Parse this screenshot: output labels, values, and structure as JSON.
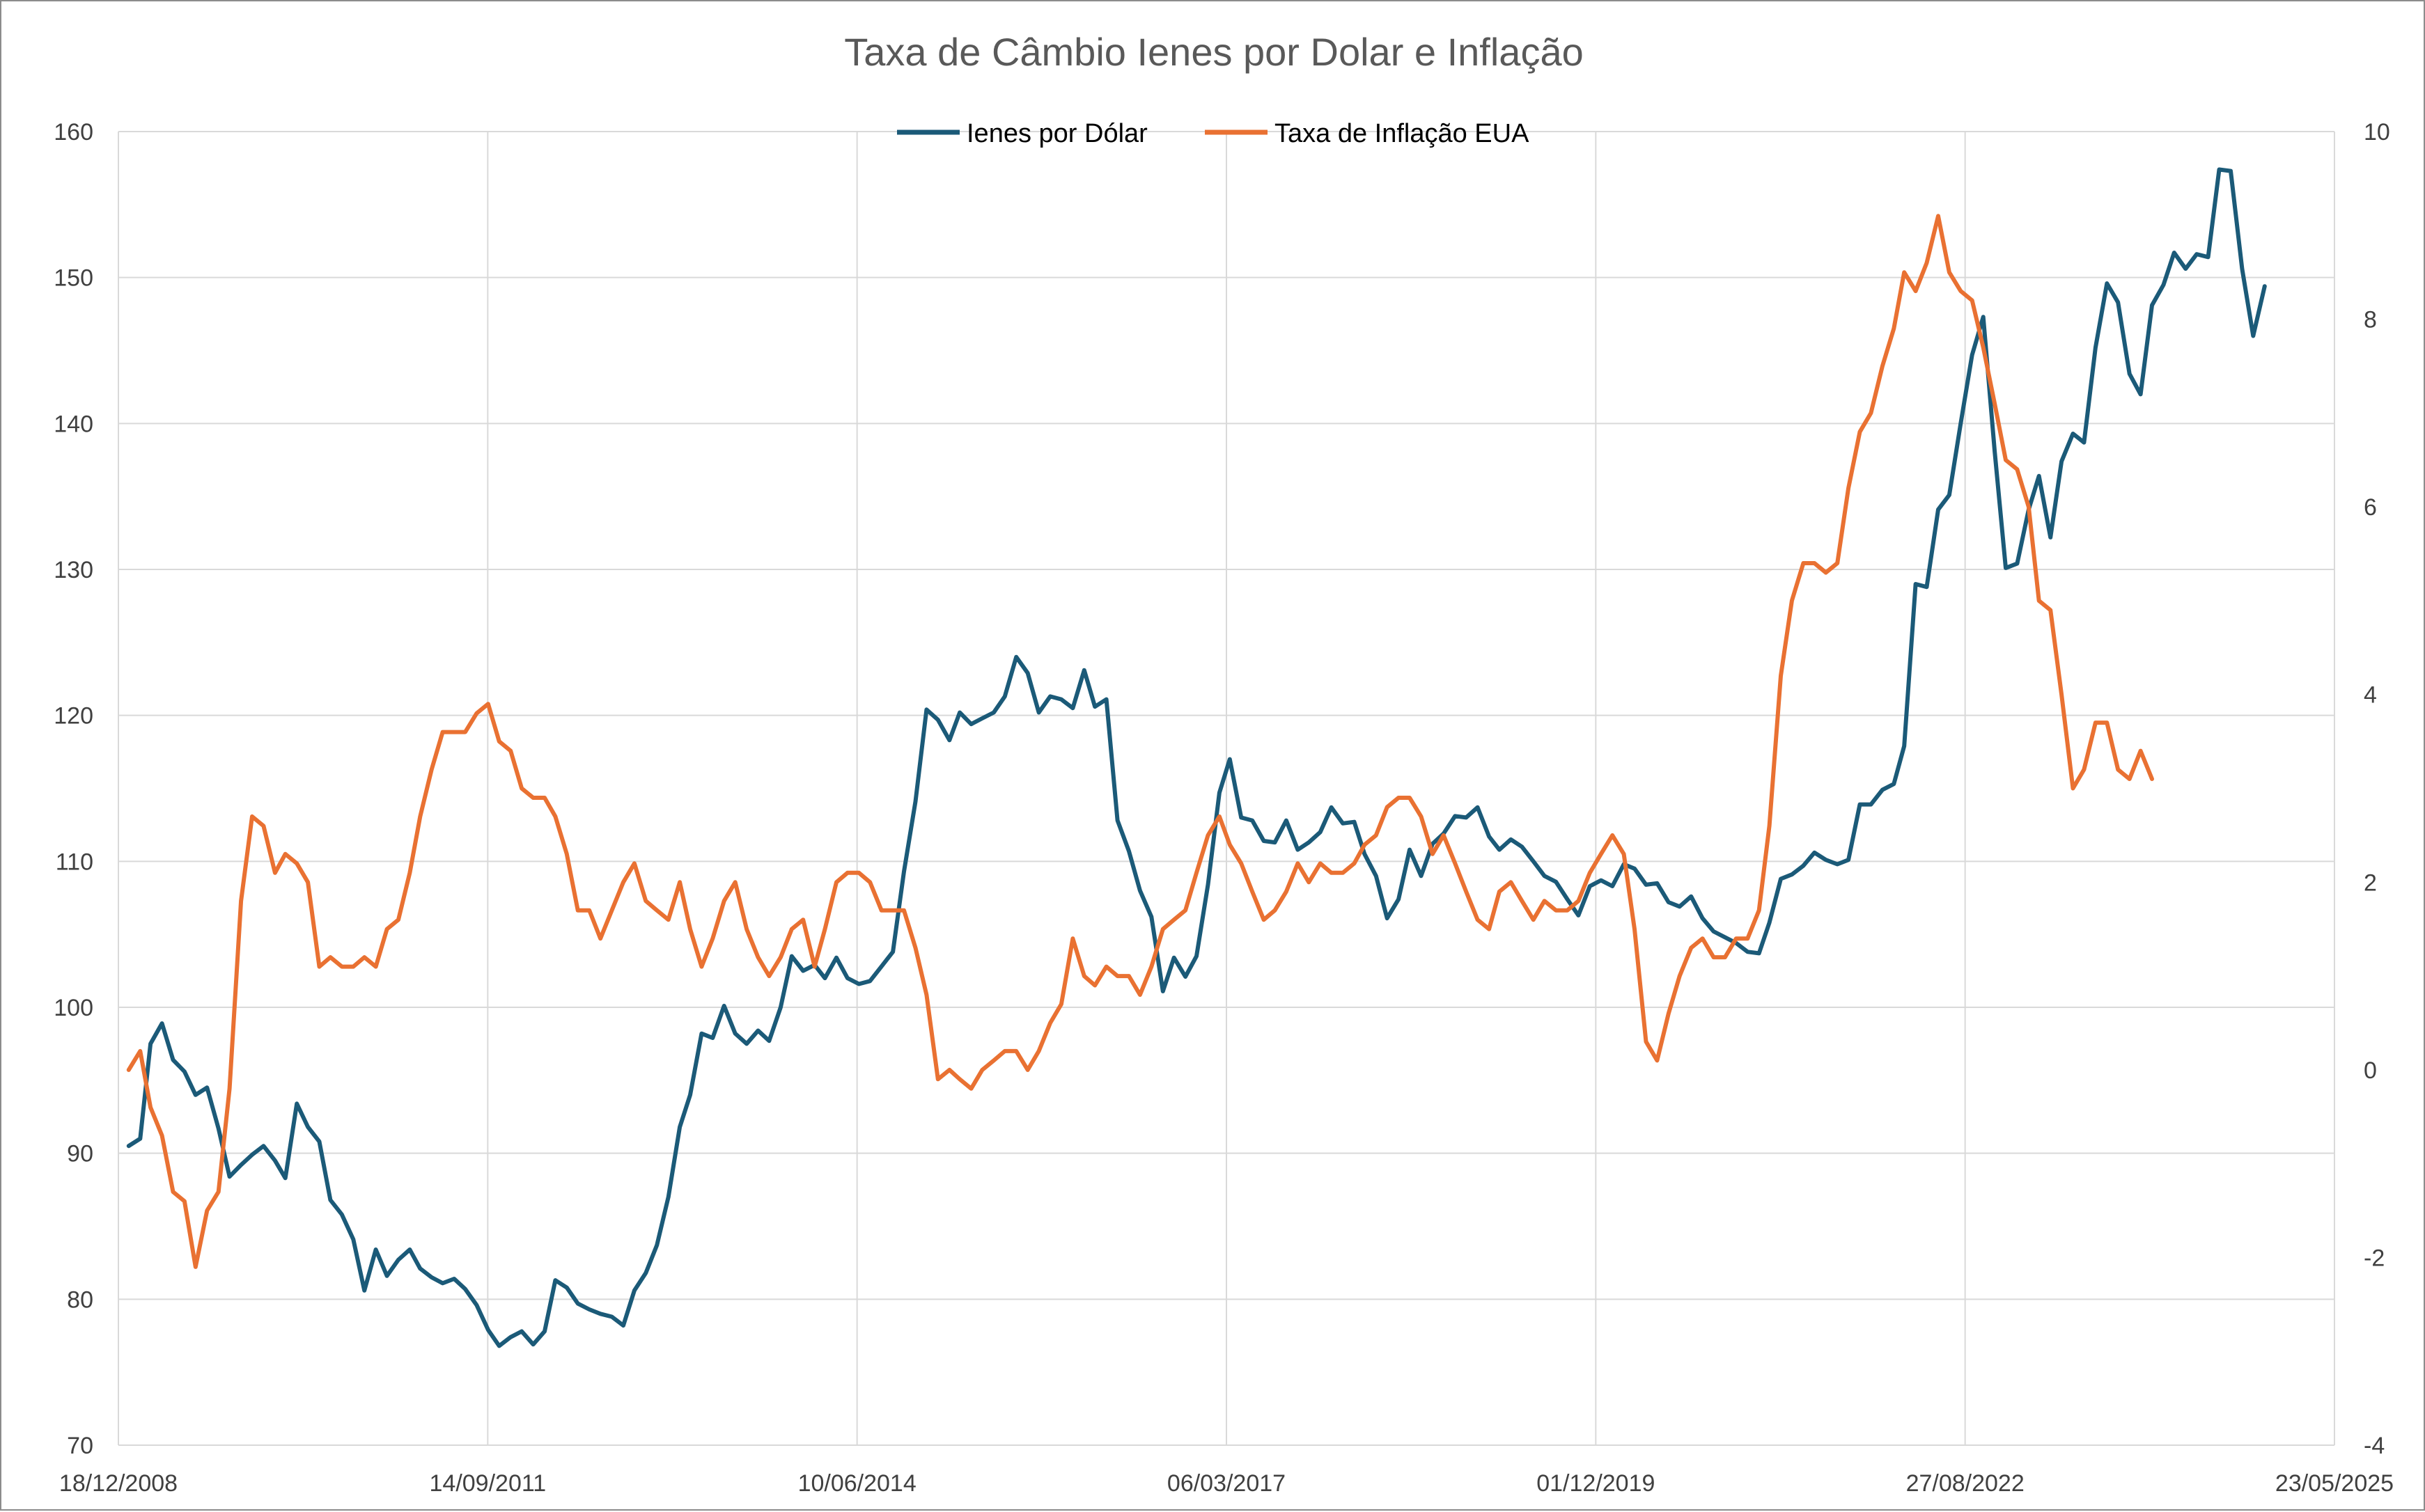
{
  "chart_data": {
    "type": "line",
    "title": "Taxa de Câmbio Ienes por Dolar e Inflação",
    "xlabel": "",
    "ylabel": "",
    "x_tick_labels": [
      "18/12/2008",
      "14/09/2011",
      "10/06/2014",
      "06/03/2017",
      "01/12/2019",
      "27/08/2022",
      "23/05/2025"
    ],
    "y_tick_labels": [
      "70",
      "80",
      "90",
      "100",
      "110",
      "120",
      "130",
      "140",
      "150",
      "160"
    ],
    "y2_tick_labels": [
      "-4",
      "-2",
      "0",
      "2",
      "4",
      "6",
      "8",
      "10"
    ],
    "xlim": [
      "2008-12-18",
      "2025-05-23"
    ],
    "ylim": [
      70,
      160
    ],
    "y2lim": [
      -4,
      10
    ],
    "grid": true,
    "legend_position": "top-center",
    "series": [
      {
        "name": "Ienes por Dólar",
        "axis": "left",
        "color": "#1b5a78",
        "start_date": "2009-01-31",
        "values": [
          90.5,
          91.0,
          97.5,
          98.9,
          96.4,
          95.6,
          94.0,
          94.5,
          91.7,
          88.4,
          89.2,
          89.9,
          90.5,
          89.5,
          88.3,
          93.4,
          91.8,
          90.8,
          86.8,
          85.8,
          84.1,
          80.6,
          83.4,
          81.6,
          82.7,
          83.4,
          82.1,
          81.5,
          81.1,
          81.4,
          80.7,
          79.6,
          77.9,
          76.8,
          77.4,
          77.8,
          76.9,
          77.8,
          81.3,
          80.8,
          79.7,
          79.3,
          79.0,
          78.8,
          78.2,
          80.6,
          81.8,
          83.7,
          87.0,
          91.8,
          94.0,
          98.2,
          97.9,
          100.1,
          98.2,
          97.5,
          98.4,
          97.7,
          100.0,
          103.5,
          102.5,
          102.9,
          102.0,
          103.4,
          102.0,
          101.6,
          101.8,
          102.8,
          103.8,
          109.3,
          114.1,
          120.4,
          119.7,
          118.3,
          120.2,
          119.4,
          119.8,
          120.2,
          121.3,
          124.0,
          122.9,
          120.2,
          121.3,
          121.1,
          120.5,
          123.1,
          120.6,
          121.1,
          112.8,
          110.7,
          108.0,
          106.2,
          101.1,
          103.4,
          102.1,
          103.5,
          108.4,
          114.7,
          117.0,
          113.0,
          112.8,
          111.4,
          111.3,
          112.8,
          110.8,
          111.3,
          112.0,
          113.7,
          112.6,
          112.7,
          110.5,
          109.0,
          106.1,
          107.4,
          110.8,
          109.0,
          111.2,
          111.9,
          113.1,
          113.0,
          113.7,
          111.7,
          110.8,
          111.5,
          111.0,
          110.0,
          109.0,
          108.6,
          107.4,
          106.3,
          108.3,
          108.7,
          108.3,
          109.8,
          109.5,
          108.4,
          108.5,
          107.2,
          106.9,
          107.6,
          106.1,
          105.2,
          104.8,
          104.4,
          103.8,
          103.7,
          105.8,
          108.8,
          109.1,
          109.7,
          110.6,
          110.1,
          109.8,
          110.1,
          113.9,
          113.9,
          114.9,
          115.3,
          117.9,
          129.0,
          128.8,
          134.1,
          135.1,
          140.0,
          144.7,
          147.3,
          138.1,
          130.1,
          130.4,
          134.1,
          136.4,
          132.2,
          137.4,
          139.3,
          138.7,
          145.2,
          149.6,
          148.3,
          143.4,
          142.0,
          148.1,
          149.5,
          151.7,
          150.6,
          151.6,
          151.4,
          157.4,
          157.3,
          150.6,
          146.0,
          149.4
        ]
      },
      {
        "name": "Taxa de Inflação EUA",
        "axis": "right",
        "color": "#e97132",
        "start_date": "2009-01-31",
        "values": [
          0.0,
          0.2,
          -0.4,
          -0.7,
          -1.3,
          -1.4,
          -2.1,
          -1.5,
          -1.3,
          -0.2,
          1.8,
          2.7,
          2.6,
          2.1,
          2.3,
          2.2,
          2.0,
          1.1,
          1.2,
          1.1,
          1.1,
          1.2,
          1.1,
          1.5,
          1.6,
          2.1,
          2.7,
          3.2,
          3.6,
          3.6,
          3.6,
          3.8,
          3.9,
          3.5,
          3.4,
          3.0,
          2.9,
          2.9,
          2.7,
          2.3,
          1.7,
          1.7,
          1.4,
          1.7,
          2.0,
          2.2,
          1.8,
          1.7,
          1.6,
          2.0,
          1.5,
          1.1,
          1.4,
          1.8,
          2.0,
          1.5,
          1.2,
          1.0,
          1.2,
          1.5,
          1.6,
          1.1,
          1.5,
          2.0,
          2.1,
          2.1,
          2.0,
          1.7,
          1.7,
          1.7,
          1.3,
          0.8,
          -0.1,
          0.0,
          -0.1,
          -0.2,
          0.0,
          0.1,
          0.2,
          0.2,
          0.0,
          0.2,
          0.5,
          0.7,
          1.4,
          1.0,
          0.9,
          1.1,
          1.0,
          1.0,
          0.8,
          1.1,
          1.5,
          1.6,
          1.7,
          2.1,
          2.5,
          2.7,
          2.4,
          2.2,
          1.9,
          1.6,
          1.7,
          1.9,
          2.2,
          2.0,
          2.2,
          2.1,
          2.1,
          2.2,
          2.4,
          2.5,
          2.8,
          2.9,
          2.9,
          2.7,
          2.3,
          2.5,
          2.2,
          1.9,
          1.6,
          1.5,
          1.9,
          2.0,
          1.8,
          1.6,
          1.8,
          1.7,
          1.7,
          1.8,
          2.1,
          2.3,
          2.5,
          2.3,
          1.5,
          0.3,
          0.1,
          0.6,
          1.0,
          1.3,
          1.4,
          1.2,
          1.2,
          1.4,
          1.4,
          1.7,
          2.6,
          4.2,
          5.0,
          5.4,
          5.4,
          5.3,
          5.4,
          6.2,
          6.8,
          7.0,
          7.5,
          7.9,
          8.5,
          8.3,
          8.6,
          9.1,
          8.5,
          8.3,
          8.2,
          7.7,
          7.1,
          6.5,
          6.4,
          6.0,
          5.0,
          4.9,
          4.0,
          3.0,
          3.2,
          3.7,
          3.7,
          3.2,
          3.1,
          3.4,
          3.1
        ]
      }
    ]
  }
}
